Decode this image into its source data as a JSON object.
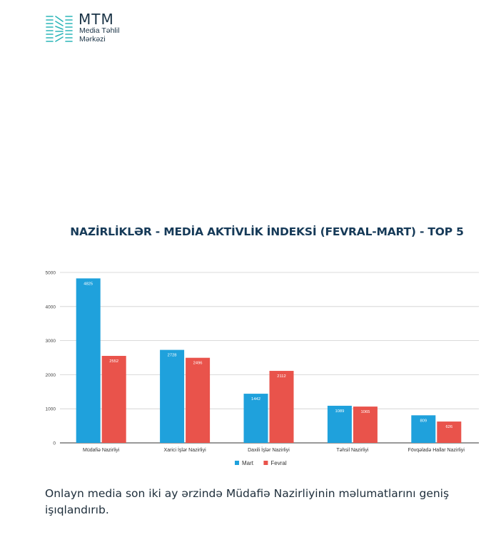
{
  "logo": {
    "title": "MTM",
    "subtitle_line1": "Media Təhlil",
    "subtitle_line2": "Mərkəzi"
  },
  "caption": "Onlayn media son iki ay ərzində Müdafiə Nazirliyinin məlumatlarını geniş işıqlandırıb.",
  "chart_data": {
    "type": "bar",
    "title": "NAZİRLİKLƏR - MEDİA AKTİVLİK İNDEKSİ (FEVRAL-MART) - TOP 5",
    "xlabel": "",
    "ylabel": "",
    "ylim": [
      0,
      5000
    ],
    "yticks": [
      0,
      1000,
      2000,
      3000,
      4000,
      5000
    ],
    "grid": true,
    "legend_position": "bottom",
    "categories": [
      "Müdafiə Nazirliyi",
      "Xarici İşlər Nazirliyi",
      "Daxili İşlər Nazirliyi",
      "Təhsil Nazirliyi",
      "Fövqəladə Hallar Nazirliyi"
    ],
    "series": [
      {
        "name": "Mart",
        "color": "#1fa1dc",
        "values": [
          4825,
          2728,
          1442,
          1089,
          809
        ]
      },
      {
        "name": "Fevral",
        "color": "#e9534b",
        "values": [
          2552,
          2496,
          2112,
          1065,
          626
        ]
      }
    ]
  }
}
